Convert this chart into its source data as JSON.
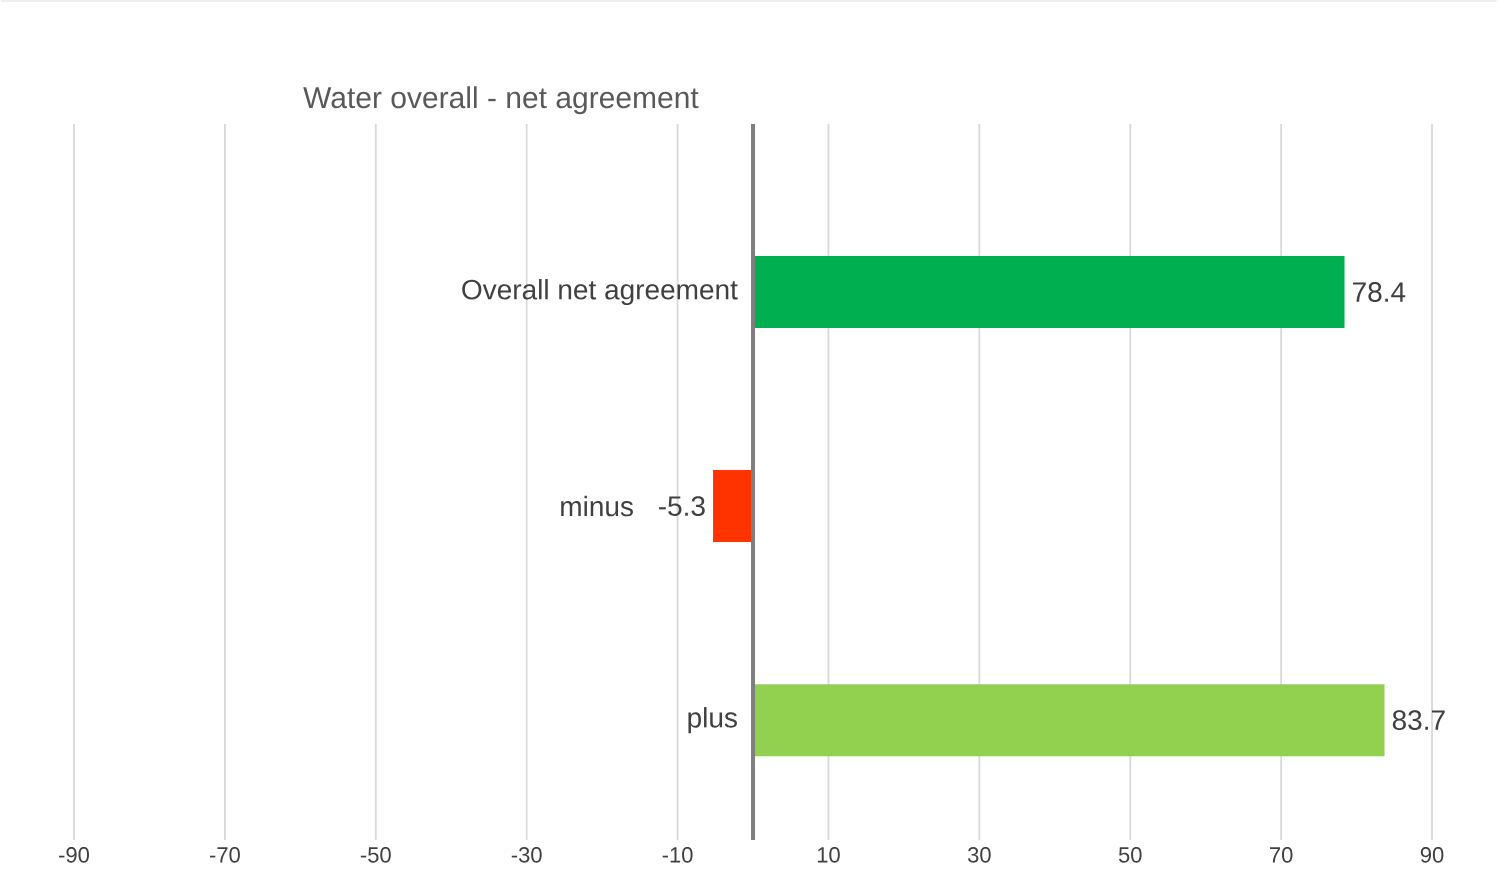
{
  "chart_data": {
    "type": "bar",
    "orientation": "horizontal",
    "title": "Water overall - net agreement",
    "categories": [
      "Overall net agreement",
      "minus",
      "plus"
    ],
    "values": [
      78.4,
      -5.3,
      83.7
    ],
    "colors": [
      "#00b050",
      "#ff3300",
      "#92d050"
    ],
    "xlim": [
      -90,
      90
    ],
    "xticks": [
      -90,
      -70,
      -50,
      -30,
      -10,
      10,
      30,
      50,
      70,
      90
    ],
    "grid": "x",
    "data_labels": true
  }
}
